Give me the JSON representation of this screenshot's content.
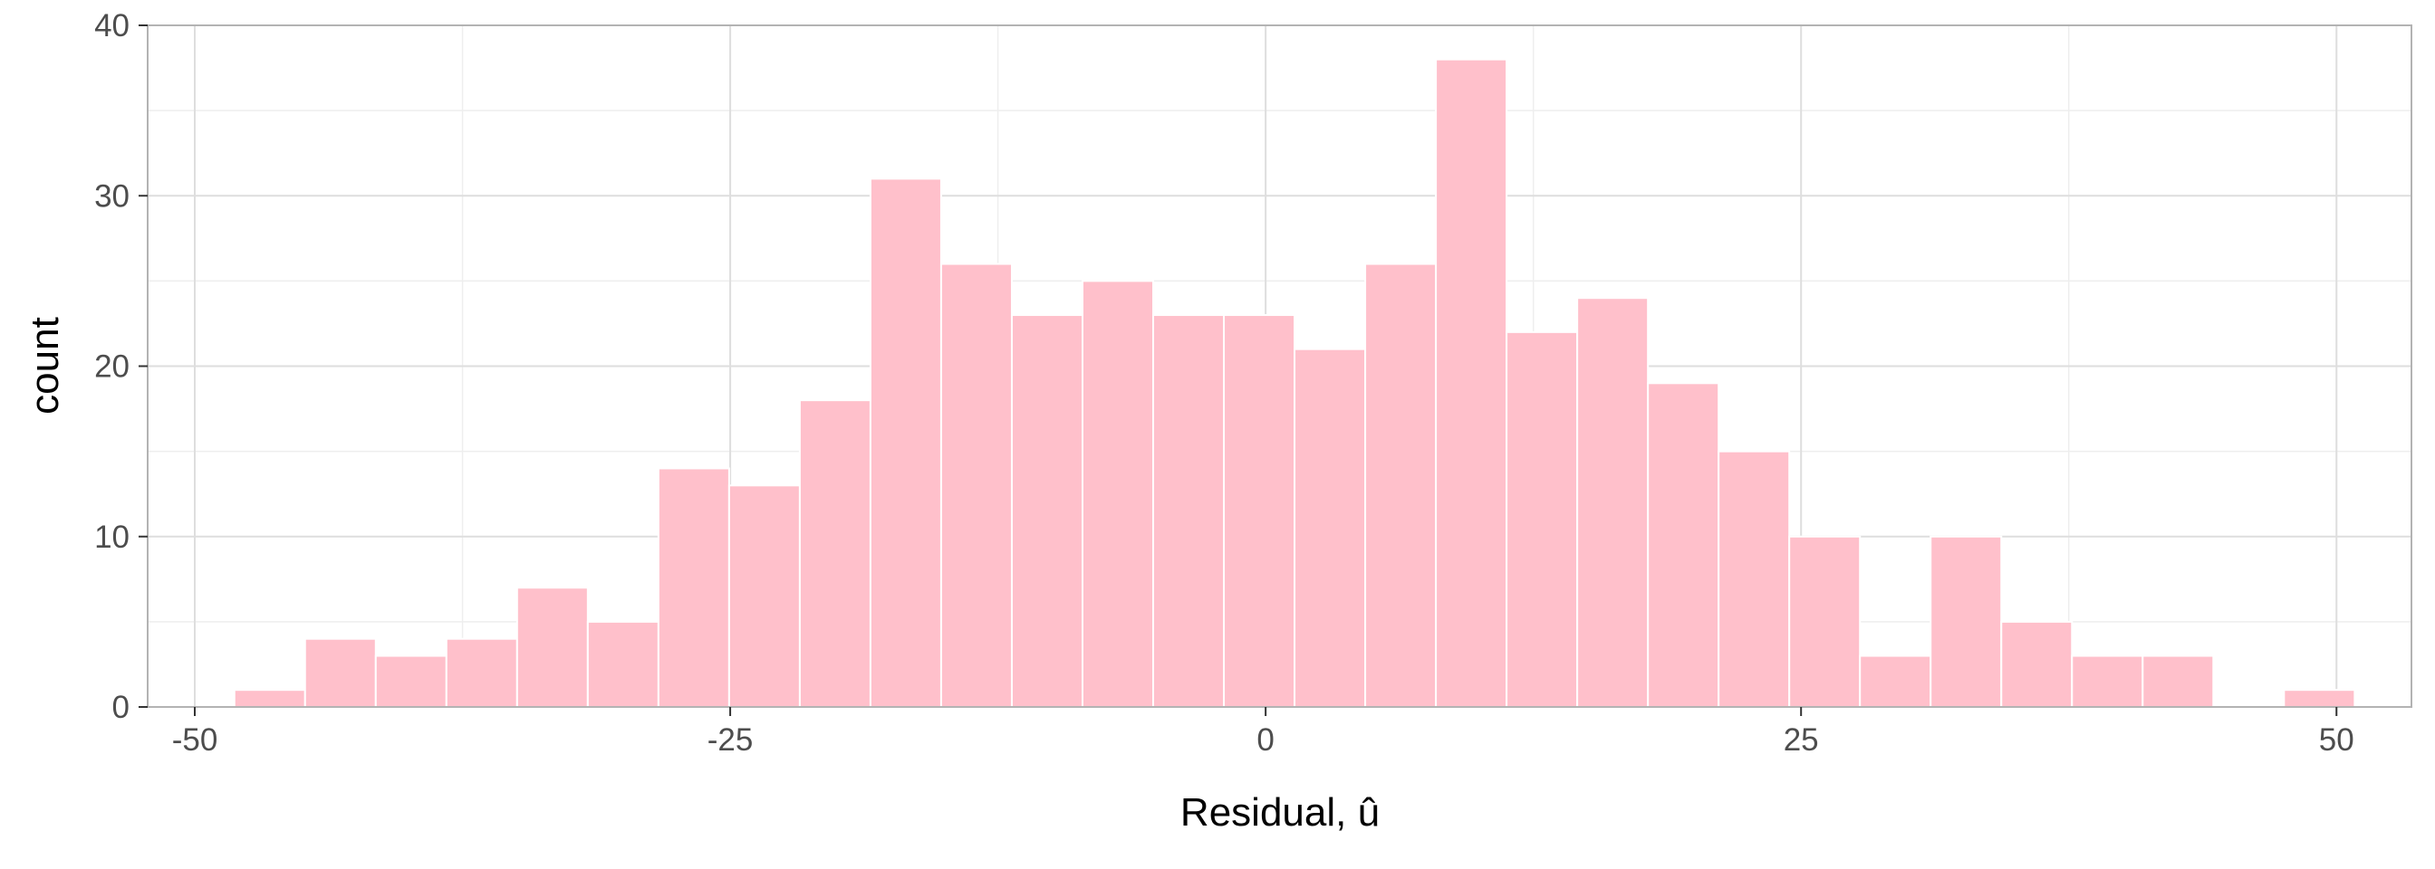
{
  "chart_data": {
    "type": "bar",
    "xlabel": "Residual, û",
    "ylabel": "count",
    "xlim": [
      -52.2,
      53.5
    ],
    "ylim": [
      0,
      40
    ],
    "x_ticks": [
      -50,
      -25,
      0,
      25,
      50
    ],
    "x_tick_labels": [
      "-50",
      "-25",
      "0",
      "25",
      "50"
    ],
    "y_ticks": [
      0,
      10,
      20,
      30,
      40
    ],
    "y_tick_labels": [
      "0",
      "10",
      "20",
      "30",
      "40"
    ],
    "grid": true,
    "bin_width": 3.3,
    "bins": [
      {
        "x": -46.5,
        "count": 1
      },
      {
        "x": -43.2,
        "count": 4
      },
      {
        "x": -39.9,
        "count": 3
      },
      {
        "x": -36.6,
        "count": 4
      },
      {
        "x": -33.3,
        "count": 7
      },
      {
        "x": -30.0,
        "count": 5
      },
      {
        "x": -26.7,
        "count": 14
      },
      {
        "x": -23.4,
        "count": 13
      },
      {
        "x": -20.1,
        "count": 18
      },
      {
        "x": -16.8,
        "count": 31
      },
      {
        "x": -13.5,
        "count": 26
      },
      {
        "x": -10.2,
        "count": 23
      },
      {
        "x": -6.9,
        "count": 25
      },
      {
        "x": -3.6,
        "count": 23
      },
      {
        "x": -0.3,
        "count": 23
      },
      {
        "x": 3.0,
        "count": 21
      },
      {
        "x": 6.3,
        "count": 26
      },
      {
        "x": 9.6,
        "count": 38
      },
      {
        "x": 12.9,
        "count": 22
      },
      {
        "x": 16.2,
        "count": 24
      },
      {
        "x": 19.5,
        "count": 19
      },
      {
        "x": 22.8,
        "count": 15
      },
      {
        "x": 26.1,
        "count": 10
      },
      {
        "x": 29.4,
        "count": 3
      },
      {
        "x": 32.7,
        "count": 10
      },
      {
        "x": 36.0,
        "count": 5
      },
      {
        "x": 39.3,
        "count": 3
      },
      {
        "x": 42.6,
        "count": 3
      },
      {
        "x": 45.9,
        "count": 0
      },
      {
        "x": 49.2,
        "count": 1
      }
    ],
    "colors": {
      "bar_fill": "#ffc0cb",
      "bar_stroke": "#ffffff",
      "grid_major": "#dedede",
      "grid_minor": "#eeeeee",
      "panel_border": "#b3b3b3"
    }
  }
}
